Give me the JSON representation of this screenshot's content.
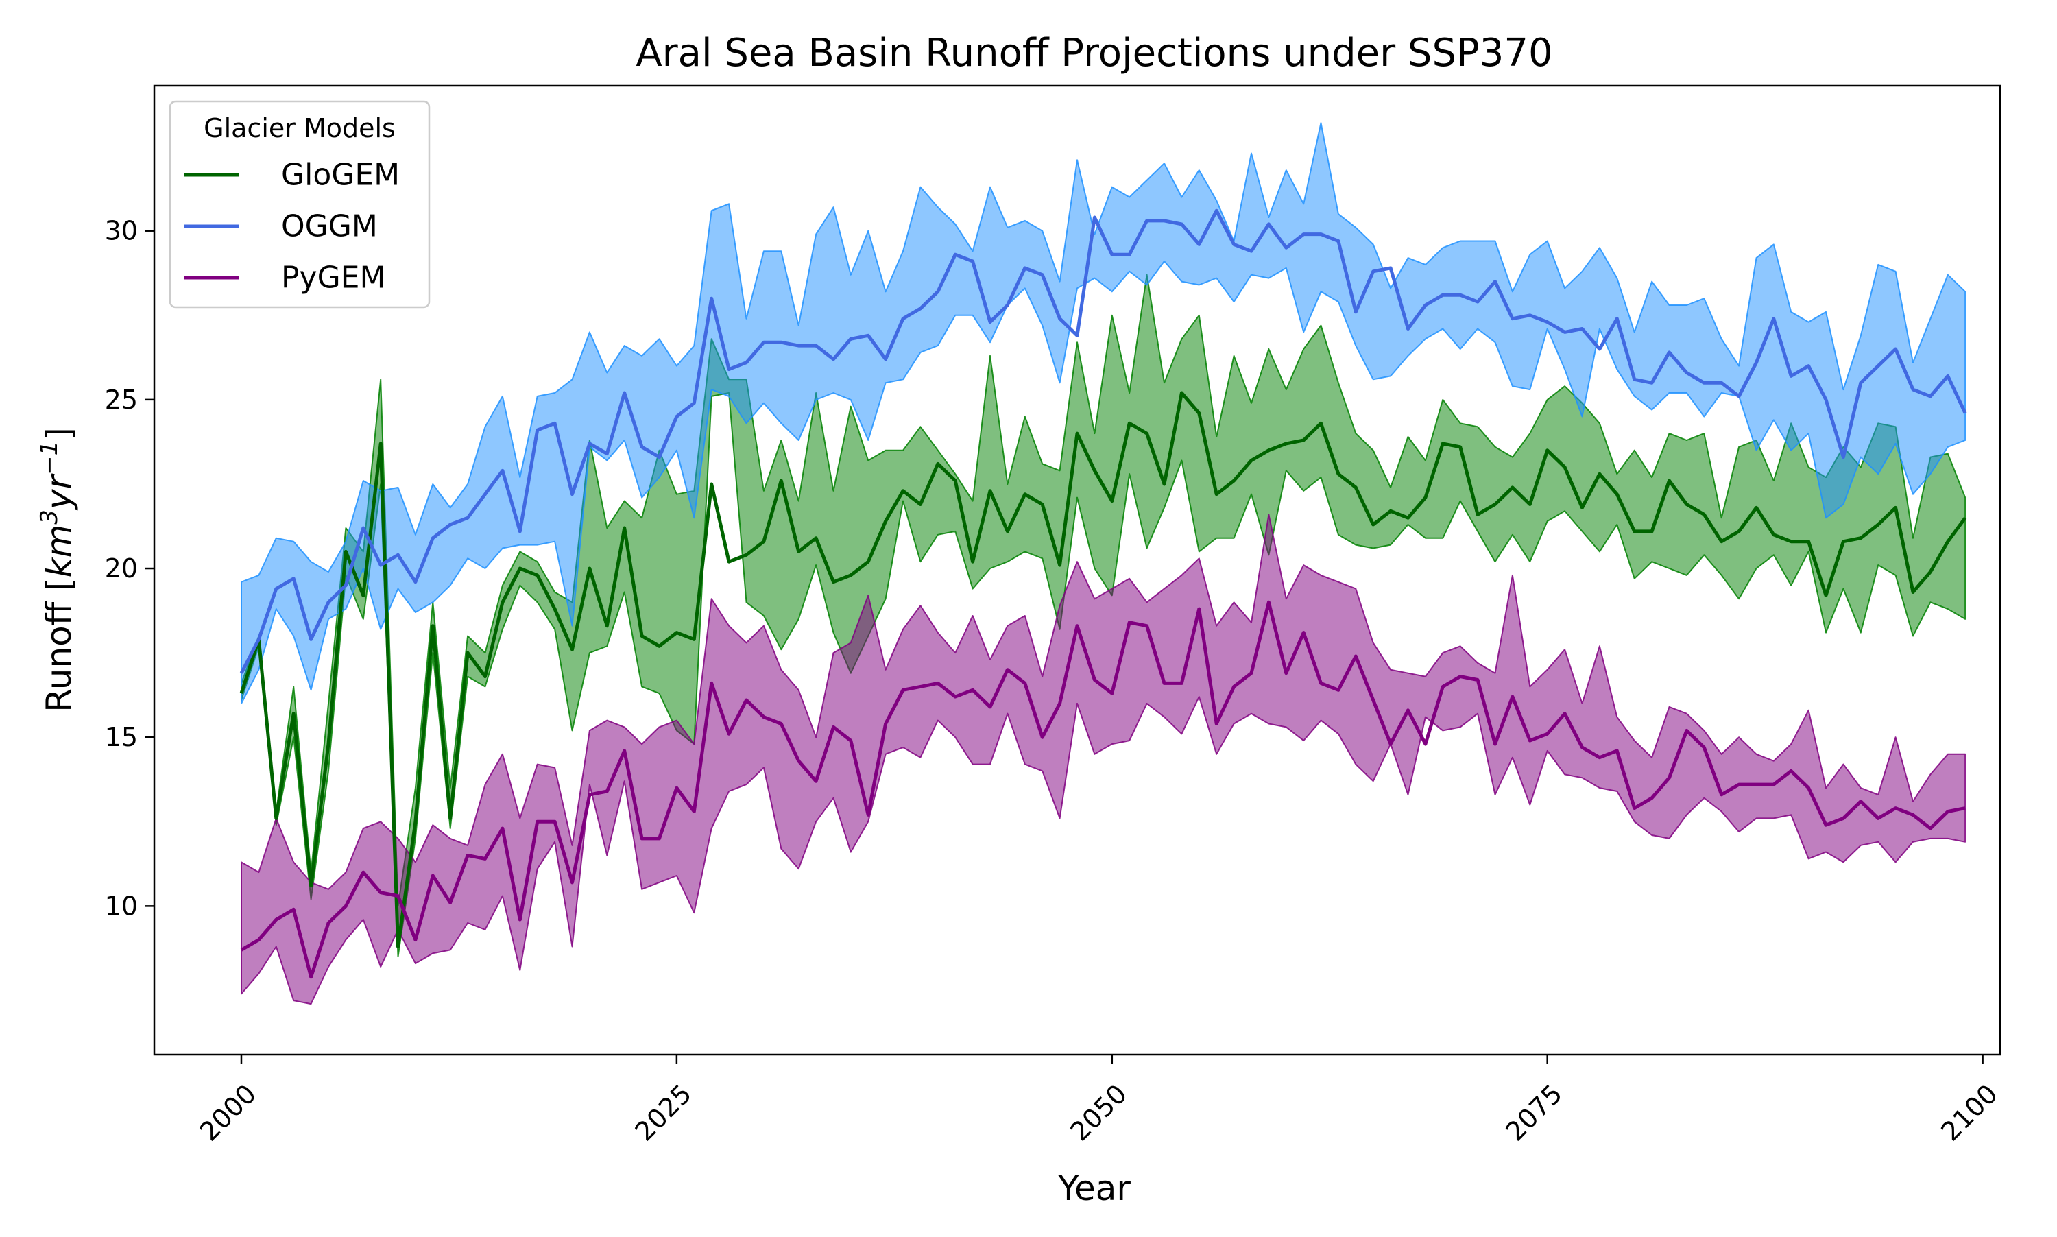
{
  "chart_data": {
    "type": "line",
    "title": "Aral Sea Basin Runoff Projections under SSP370",
    "xlabel": "Year",
    "ylabel": "Runoff [km³yr⁻¹]",
    "ylabel_parts": {
      "prefix": "Runoff [",
      "base1": "km",
      "sup1": "3",
      "base2": "yr",
      "sup2": "−1",
      "suffix": "]"
    },
    "xlim": [
      1995,
      2101
    ],
    "ylim": [
      5.6,
      34.3
    ],
    "xticks": [
      2000,
      2025,
      2050,
      2075,
      2100
    ],
    "yticks": [
      10,
      15,
      20,
      25,
      30
    ],
    "legend": {
      "title": "Glacier Models",
      "placement": "top-left"
    },
    "grid": false,
    "x": [
      2000,
      2001,
      2002,
      2003,
      2004,
      2005,
      2006,
      2007,
      2008,
      2009,
      2010,
      2011,
      2012,
      2013,
      2014,
      2015,
      2016,
      2017,
      2018,
      2019,
      2020,
      2021,
      2022,
      2023,
      2024,
      2025,
      2026,
      2027,
      2028,
      2029,
      2030,
      2031,
      2032,
      2033,
      2034,
      2035,
      2036,
      2037,
      2038,
      2039,
      2040,
      2041,
      2042,
      2043,
      2044,
      2045,
      2046,
      2047,
      2048,
      2049,
      2050,
      2051,
      2052,
      2053,
      2054,
      2055,
      2056,
      2057,
      2058,
      2059,
      2060,
      2061,
      2062,
      2063,
      2064,
      2065,
      2066,
      2067,
      2068,
      2069,
      2070,
      2071,
      2072,
      2073,
      2074,
      2075,
      2076,
      2077,
      2078,
      2079,
      2080,
      2081,
      2082,
      2083,
      2084,
      2085,
      2086,
      2087,
      2088,
      2089,
      2090,
      2091,
      2092,
      2093,
      2094,
      2095,
      2096,
      2097,
      2098,
      2099
    ],
    "series": [
      {
        "name": "GloGEM",
        "color": "#006400",
        "fill": "#008000",
        "mean": [
          16.3,
          17.9,
          12.6,
          15.7,
          10.6,
          14.8,
          20.5,
          19.2,
          23.7,
          8.8,
          12.5,
          18.3,
          12.6,
          17.5,
          16.8,
          19.0,
          20.0,
          19.8,
          18.8,
          17.6,
          20.0,
          18.3,
          21.2,
          18.0,
          17.7,
          18.1,
          17.9,
          22.5,
          20.2,
          20.4,
          20.8,
          22.6,
          20.5,
          20.9,
          19.6,
          19.8,
          20.2,
          21.4,
          22.3,
          21.9,
          23.1,
          22.6,
          20.2,
          22.3,
          21.1,
          22.2,
          21.9,
          20.1,
          24.0,
          22.9,
          22.0,
          24.3,
          24.0,
          22.5,
          25.2,
          24.6,
          22.2,
          22.6,
          23.2,
          23.5,
          23.7,
          23.8,
          24.3,
          22.8,
          22.4,
          21.3,
          21.7,
          21.5,
          22.1,
          23.7,
          23.6,
          21.6,
          21.9,
          22.4,
          21.9,
          23.5,
          23.0,
          21.8,
          22.8,
          22.2,
          21.1,
          21.1,
          22.6,
          21.9,
          21.6,
          20.8,
          21.1,
          21.8,
          21.0,
          20.8,
          20.8,
          19.2,
          20.8,
          20.9,
          21.3,
          21.8,
          19.3,
          19.9,
          20.8,
          21.5
        ],
        "upper": [
          16.6,
          18.0,
          12.8,
          16.5,
          11.0,
          16.0,
          21.2,
          20.5,
          25.6,
          10.0,
          13.5,
          19.0,
          13.5,
          18.0,
          17.5,
          19.5,
          20.5,
          20.2,
          19.3,
          19.0,
          23.8,
          21.2,
          22.0,
          21.5,
          23.5,
          22.2,
          22.3,
          26.8,
          25.6,
          25.6,
          22.3,
          23.8,
          22.0,
          25.2,
          22.3,
          24.8,
          23.2,
          23.5,
          23.5,
          24.2,
          23.5,
          22.8,
          22.0,
          26.3,
          22.5,
          24.5,
          23.1,
          22.9,
          26.7,
          24.0,
          27.5,
          25.2,
          28.7,
          25.5,
          26.8,
          27.5,
          23.9,
          26.3,
          24.9,
          26.5,
          25.3,
          26.5,
          27.2,
          25.5,
          24.0,
          23.5,
          22.4,
          23.9,
          23.2,
          25.0,
          24.3,
          24.2,
          23.6,
          23.3,
          24.0,
          25.0,
          25.4,
          24.9,
          24.3,
          22.8,
          23.5,
          22.7,
          24.0,
          23.8,
          24.0,
          21.5,
          23.6,
          23.8,
          22.6,
          24.3,
          23.0,
          22.7,
          23.6,
          23.0,
          24.3,
          24.2,
          20.9,
          23.3,
          23.4,
          22.1
        ],
        "lower": [
          16.1,
          17.7,
          12.4,
          15.0,
          10.2,
          14.0,
          19.8,
          18.5,
          22.5,
          8.5,
          12.0,
          17.5,
          12.3,
          16.8,
          16.5,
          18.2,
          19.5,
          19.0,
          18.2,
          15.2,
          17.5,
          17.7,
          19.3,
          16.5,
          16.3,
          15.2,
          14.8,
          25.1,
          25.2,
          19.0,
          18.6,
          17.6,
          18.5,
          20.1,
          18.1,
          16.9,
          18.0,
          19.1,
          22.0,
          20.2,
          21.0,
          21.1,
          19.4,
          20.0,
          20.2,
          20.5,
          20.3,
          18.2,
          22.1,
          20.0,
          19.2,
          22.8,
          20.6,
          21.8,
          23.2,
          20.5,
          20.9,
          20.9,
          22.2,
          20.4,
          22.9,
          22.3,
          22.7,
          21.0,
          20.7,
          20.6,
          20.7,
          21.3,
          20.9,
          20.9,
          22.0,
          21.1,
          20.2,
          21.0,
          20.2,
          21.4,
          21.7,
          21.1,
          20.5,
          21.3,
          19.7,
          20.2,
          20.0,
          19.8,
          20.4,
          19.8,
          19.1,
          20.0,
          20.4,
          19.5,
          20.5,
          18.1,
          19.4,
          18.1,
          20.1,
          19.8,
          18.0,
          19.0,
          18.8,
          18.5
        ]
      },
      {
        "name": "OGGM",
        "color": "#4169e1",
        "fill": "#1e90ff",
        "mean": [
          16.9,
          17.9,
          19.4,
          19.7,
          17.9,
          19.0,
          19.5,
          21.2,
          20.1,
          20.4,
          19.6,
          20.9,
          21.3,
          21.5,
          22.2,
          22.9,
          21.1,
          24.1,
          24.3,
          22.2,
          23.7,
          23.4,
          25.2,
          23.6,
          23.3,
          24.5,
          24.9,
          28.0,
          25.9,
          26.1,
          26.7,
          26.7,
          26.6,
          26.6,
          26.2,
          26.8,
          26.9,
          26.2,
          27.4,
          27.7,
          28.2,
          29.3,
          29.1,
          27.3,
          27.8,
          28.9,
          28.7,
          27.4,
          26.9,
          30.4,
          29.3,
          29.3,
          30.3,
          30.3,
          30.2,
          29.6,
          30.6,
          29.6,
          29.4,
          30.2,
          29.5,
          29.9,
          29.9,
          29.7,
          27.6,
          28.8,
          28.9,
          27.1,
          27.8,
          28.1,
          28.1,
          27.9,
          28.5,
          27.4,
          27.5,
          27.3,
          27.0,
          27.1,
          26.5,
          27.4,
          25.6,
          25.5,
          26.4,
          25.8,
          25.5,
          25.5,
          25.1,
          26.1,
          27.4,
          25.7,
          26.0,
          25.0,
          23.3,
          25.5,
          26.0,
          26.5,
          25.3,
          25.1,
          25.7,
          24.6
        ],
        "upper": [
          19.6,
          19.8,
          20.9,
          20.8,
          20.2,
          19.9,
          20.8,
          22.6,
          22.3,
          22.4,
          21.0,
          22.5,
          21.8,
          22.5,
          24.2,
          25.1,
          22.7,
          25.1,
          25.2,
          25.6,
          27.0,
          25.8,
          26.6,
          26.3,
          26.8,
          26.0,
          26.6,
          30.6,
          30.8,
          27.4,
          29.4,
          29.4,
          27.2,
          29.9,
          30.7,
          28.7,
          30.0,
          28.2,
          29.4,
          31.3,
          30.7,
          30.2,
          29.4,
          31.3,
          30.1,
          30.3,
          30.0,
          28.5,
          32.1,
          29.9,
          31.3,
          31.0,
          31.5,
          32.0,
          31.0,
          31.8,
          30.9,
          29.7,
          32.3,
          30.4,
          31.8,
          30.8,
          33.2,
          30.5,
          30.1,
          29.6,
          28.3,
          29.2,
          29.0,
          29.5,
          29.7,
          29.7,
          29.7,
          28.2,
          29.3,
          29.7,
          28.3,
          28.8,
          29.5,
          28.6,
          27.0,
          28.5,
          27.8,
          27.8,
          28.0,
          26.8,
          26.0,
          29.2,
          29.6,
          27.6,
          27.3,
          27.6,
          25.3,
          26.9,
          29.0,
          28.8,
          26.1,
          27.4,
          28.7,
          28.2
        ],
        "lower": [
          16.0,
          17.0,
          18.8,
          18.0,
          16.4,
          18.5,
          18.8,
          20.0,
          18.2,
          19.4,
          18.7,
          19.0,
          19.5,
          20.3,
          20.0,
          20.6,
          20.7,
          20.7,
          20.8,
          18.3,
          23.6,
          23.2,
          23.8,
          22.1,
          22.7,
          23.5,
          21.5,
          25.3,
          25.1,
          24.3,
          24.9,
          24.3,
          23.8,
          25.0,
          25.2,
          25.0,
          23.8,
          25.5,
          25.6,
          26.4,
          26.6,
          27.5,
          27.5,
          26.7,
          27.8,
          28.3,
          27.2,
          25.5,
          28.3,
          28.6,
          28.2,
          28.8,
          28.4,
          29.1,
          28.5,
          28.4,
          28.6,
          27.9,
          28.7,
          28.6,
          28.9,
          27.0,
          28.2,
          27.9,
          26.6,
          25.6,
          25.7,
          26.3,
          26.8,
          27.1,
          26.5,
          27.1,
          26.7,
          25.4,
          25.3,
          27.1,
          25.9,
          24.5,
          27.1,
          25.9,
          25.1,
          24.7,
          25.2,
          25.2,
          24.5,
          25.2,
          25.1,
          23.5,
          24.4,
          23.5,
          24.0,
          21.5,
          21.9,
          23.3,
          22.8,
          23.7,
          22.2,
          22.8,
          23.6,
          23.8
        ]
      },
      {
        "name": "PyGEM",
        "color": "#800080",
        "fill": "#800080",
        "mean": [
          8.7,
          9.0,
          9.6,
          9.9,
          7.9,
          9.5,
          10.0,
          11.0,
          10.4,
          10.3,
          9.0,
          10.9,
          10.1,
          11.5,
          11.4,
          12.3,
          9.6,
          12.5,
          12.5,
          10.7,
          13.3,
          13.4,
          14.6,
          12.0,
          12.0,
          13.5,
          12.8,
          16.6,
          15.1,
          16.1,
          15.6,
          15.4,
          14.3,
          13.7,
          15.3,
          14.9,
          12.7,
          15.4,
          16.4,
          16.5,
          16.6,
          16.2,
          16.4,
          15.9,
          17.0,
          16.6,
          15.0,
          16.0,
          18.3,
          16.7,
          16.3,
          18.4,
          18.3,
          16.6,
          16.6,
          18.8,
          15.4,
          16.5,
          16.9,
          19.0,
          16.9,
          18.1,
          16.6,
          16.4,
          17.4,
          16.1,
          14.8,
          15.8,
          14.8,
          16.5,
          16.8,
          16.7,
          14.8,
          16.2,
          14.9,
          15.1,
          15.7,
          14.7,
          14.4,
          14.6,
          12.9,
          13.2,
          13.8,
          15.2,
          14.7,
          13.3,
          13.6,
          13.6,
          13.6,
          14.0,
          13.5,
          12.4,
          12.6,
          13.1,
          12.6,
          12.9,
          12.7,
          12.3,
          12.8,
          12.9
        ],
        "upper": [
          11.3,
          11.0,
          12.6,
          11.3,
          10.7,
          10.5,
          11.0,
          12.3,
          12.5,
          12.0,
          11.3,
          12.4,
          12.0,
          11.8,
          13.6,
          14.5,
          12.6,
          14.2,
          14.1,
          11.8,
          15.2,
          15.5,
          15.3,
          14.8,
          15.3,
          15.5,
          14.8,
          19.1,
          18.3,
          17.8,
          18.3,
          17.0,
          16.4,
          15.0,
          17.5,
          17.8,
          19.2,
          17.0,
          18.2,
          18.9,
          18.1,
          17.5,
          18.6,
          17.3,
          18.3,
          18.6,
          16.8,
          18.9,
          20.2,
          19.1,
          19.4,
          19.7,
          19.0,
          19.4,
          19.8,
          20.3,
          18.3,
          19.0,
          18.4,
          21.6,
          19.1,
          20.1,
          19.8,
          19.6,
          19.4,
          17.8,
          17.0,
          16.9,
          16.8,
          17.5,
          17.7,
          17.2,
          16.9,
          19.8,
          16.5,
          17.0,
          17.6,
          16.0,
          17.7,
          15.6,
          14.9,
          14.4,
          15.9,
          15.7,
          15.2,
          14.5,
          15.0,
          14.5,
          14.3,
          14.8,
          15.8,
          13.5,
          14.2,
          13.5,
          13.3,
          15.0,
          13.1,
          13.9,
          14.5,
          14.5
        ],
        "lower": [
          7.4,
          8.0,
          8.8,
          7.2,
          7.1,
          8.2,
          9.0,
          9.6,
          8.2,
          9.3,
          8.3,
          8.6,
          8.7,
          9.5,
          9.3,
          10.3,
          8.1,
          11.1,
          11.9,
          8.8,
          13.6,
          11.5,
          13.7,
          10.5,
          10.7,
          10.9,
          9.8,
          12.3,
          13.4,
          13.6,
          14.1,
          11.7,
          11.1,
          12.5,
          13.2,
          11.6,
          12.5,
          14.5,
          14.7,
          14.4,
          15.5,
          15.0,
          14.2,
          14.2,
          15.7,
          14.2,
          14.0,
          12.6,
          16.0,
          14.5,
          14.8,
          14.9,
          16.0,
          15.6,
          15.1,
          16.2,
          14.5,
          15.4,
          15.7,
          15.4,
          15.3,
          14.9,
          15.5,
          15.1,
          14.2,
          13.7,
          14.8,
          13.3,
          15.6,
          15.2,
          15.3,
          15.7,
          13.3,
          14.4,
          13.0,
          14.6,
          13.9,
          13.8,
          13.5,
          13.4,
          12.5,
          12.1,
          12.0,
          12.7,
          13.2,
          12.8,
          12.2,
          12.6,
          12.6,
          12.7,
          11.4,
          11.6,
          11.3,
          11.8,
          11.9,
          11.3,
          11.9,
          12.0,
          12.0,
          11.9
        ]
      }
    ]
  }
}
